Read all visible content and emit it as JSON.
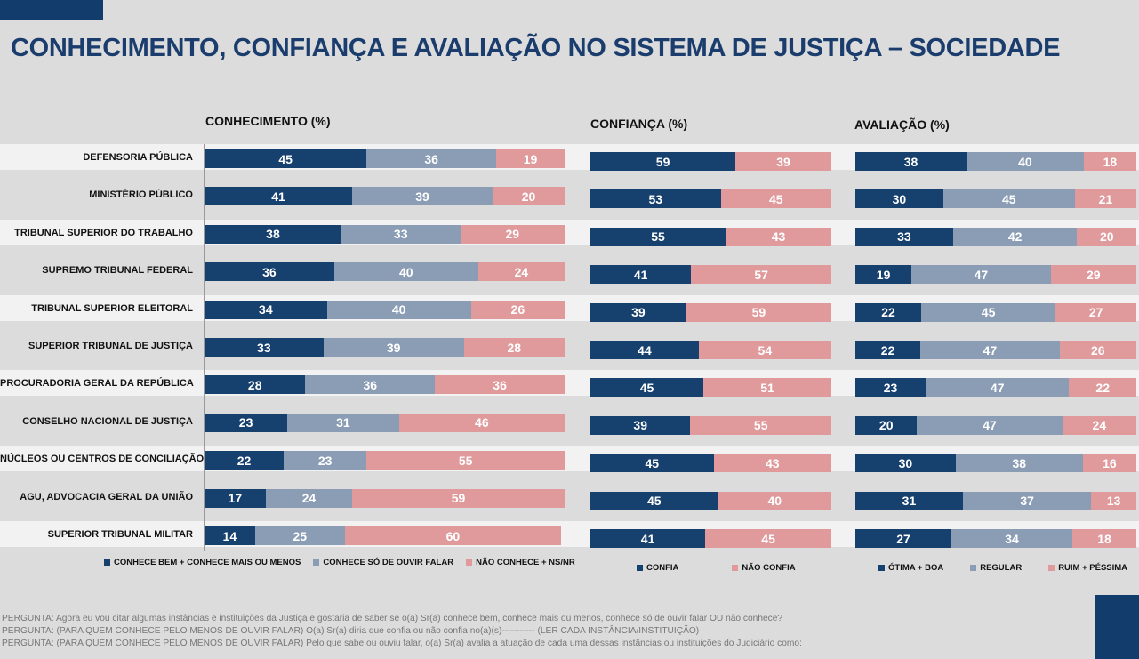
{
  "title": "CONHECIMENTO, CONFIANÇA E AVALIAÇÃO NO SISTEMA DE JUSTIÇA  – SOCIEDADE",
  "colors": {
    "dark": "#16406e",
    "mid": "#8a9db5",
    "pink": "#e09a9c",
    "title": "#1b3d6d"
  },
  "chart_data": [
    {
      "type": "bar",
      "stacked": true,
      "orientation": "horizontal",
      "title": "CONHECIMENTO (%)",
      "categories": [
        "DEFENSORIA PÚBLICA",
        "MINISTÉRIO PÚBLICO",
        "TRIBUNAL SUPERIOR DO TRABALHO",
        "SUPREMO TRIBUNAL FEDERAL",
        "TRIBUNAL SUPERIOR ELEITORAL",
        "SUPERIOR TRIBUNAL DE JUSTIÇA",
        "PROCURADORIA GERAL DA REPÚBLICA",
        "CONSELHO NACIONAL DE JUSTIÇA",
        "NÚCLEOS OU CENTROS DE CONCILIAÇÃO",
        "AGU, ADVOCACIA GERAL DA UNIÃO",
        "SUPERIOR TRIBUNAL MILITAR"
      ],
      "series": [
        {
          "name": "CONHECE BEM + CONHECE MAIS OU MENOS",
          "color": "#16406e",
          "values": [
            45,
            41,
            38,
            36,
            34,
            33,
            28,
            23,
            22,
            17,
            14
          ]
        },
        {
          "name": "CONHECE SÓ DE OUVIR FALAR",
          "color": "#8a9db5",
          "values": [
            36,
            39,
            33,
            40,
            40,
            39,
            36,
            31,
            23,
            24,
            25
          ]
        },
        {
          "name": "NÃO CONHECE + NS/NR",
          "color": "#e09a9c",
          "values": [
            19,
            20,
            29,
            24,
            26,
            28,
            36,
            46,
            55,
            59,
            60
          ]
        }
      ]
    },
    {
      "type": "bar",
      "stacked": true,
      "orientation": "horizontal",
      "title": "CONFIANÇA (%)",
      "series": [
        {
          "name": "CONFIA",
          "color": "#16406e",
          "values": [
            59,
            53,
            55,
            41,
            39,
            44,
            45,
            39,
            45,
            45,
            41
          ]
        },
        {
          "name": "NÃO CONFIA",
          "color": "#e09a9c",
          "values": [
            39,
            45,
            43,
            57,
            59,
            54,
            51,
            55,
            43,
            40,
            45
          ]
        }
      ]
    },
    {
      "type": "bar",
      "stacked": true,
      "orientation": "horizontal",
      "title": "AVALIAÇÃO  (%)",
      "series": [
        {
          "name": "ÓTIMA + BOA",
          "color": "#16406e",
          "values": [
            38,
            30,
            33,
            19,
            22,
            22,
            23,
            20,
            30,
            31,
            27
          ]
        },
        {
          "name": "REGULAR",
          "color": "#8a9db5",
          "values": [
            40,
            45,
            42,
            47,
            45,
            47,
            47,
            47,
            38,
            37,
            34
          ]
        },
        {
          "name": "RUIM + PÉSSIMA",
          "color": "#e09a9c",
          "values": [
            18,
            21,
            20,
            29,
            27,
            26,
            22,
            24,
            16,
            13,
            18
          ]
        }
      ]
    }
  ],
  "notes": [
    "PERGUNTA: Agora eu vou citar algumas instâncias e instituições da Justiça e gostaria de saber se o(a) Sr(a) conhece bem, conhece mais ou menos, conhece só de ouvir falar  OU não conhece?",
    "PERGUNTA: (PARA QUEM CONHECE PELO MENOS DE OUVIR FALAR) O(a) Sr(a) diria que confia ou não confia no(a)(s)----------- (LER CADA INSTÂNCIA/INSTITUIÇÃO)",
    "PERGUNTA: (PARA QUEM CONHECE PELO MENOS DE OUVIR FALAR) Pelo que sabe ou ouviu falar, o(a) Sr(a) avalia a atuação de cada uma dessas instâncias ou instituições do Judiciário como:"
  ]
}
